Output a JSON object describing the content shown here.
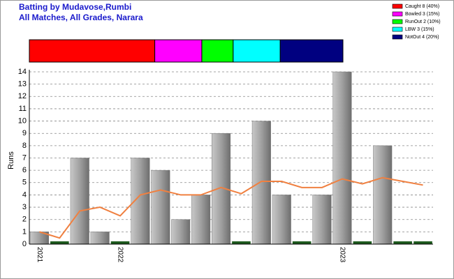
{
  "chart_data": [
    {
      "type": "stacked-bar",
      "series": [
        {
          "name": "Caught 8 (40%)",
          "color": "#ff0000",
          "values": [
            40
          ]
        },
        {
          "name": "Bowled 3 (15%)",
          "color": "#ff00ff",
          "values": [
            15
          ]
        },
        {
          "name": "RunOut 2 (10%)",
          "color": "#00ff00",
          "values": [
            10
          ]
        },
        {
          "name": "LBW 3 (15%)",
          "color": "#00ffff",
          "values": [
            15
          ]
        },
        {
          "name": "NotOut 4 (20%)",
          "color": "#000080",
          "values": [
            20
          ]
        }
      ]
    },
    {
      "type": "bar",
      "title": "Batting by Mudavose,Rumbi",
      "subtitle": "All Matches, All Grades, Narara",
      "y_label": "Runs",
      "categories": [
        "2021",
        null,
        null,
        null,
        "2022",
        null,
        null,
        null,
        null,
        null,
        null,
        null,
        null,
        null,
        null,
        "2023",
        null,
        null,
        null,
        null
      ],
      "values": [
        1,
        0,
        7,
        1,
        0,
        7,
        6,
        2,
        4,
        9,
        0,
        10,
        4,
        0,
        4,
        14,
        0,
        8,
        0,
        0
      ],
      "colors": [
        "#a0a0a0",
        "#1e5a1e",
        "#a0a0a0",
        "#a0a0a0",
        "#1e5a1e",
        "#a0a0a0",
        "#a0a0a0",
        "#a0a0a0",
        "#a0a0a0",
        "#a0a0a0",
        "#1e5a1e",
        "#a0a0a0",
        "#a0a0a0",
        "#1e5a1e",
        "#a0a0a0",
        "#a0a0a0",
        "#1e5a1e",
        "#a0a0a0",
        "#1e5a1e",
        "#1e5a1e"
      ],
      "line": {
        "color": "#f08040",
        "values": [
          1,
          0.5,
          2.7,
          3,
          2.3,
          4,
          4.4,
          4,
          4,
          4.6,
          4.1,
          5.1,
          5.1,
          4.6,
          4.6,
          5.3,
          4.9,
          5.4,
          5.1,
          4.8
        ]
      },
      "ylim": [
        0,
        14
      ],
      "yticks": [
        0,
        1,
        2,
        3,
        4,
        5,
        6,
        7,
        8,
        9,
        10,
        11,
        12,
        13,
        14
      ],
      "grid": true
    }
  ]
}
